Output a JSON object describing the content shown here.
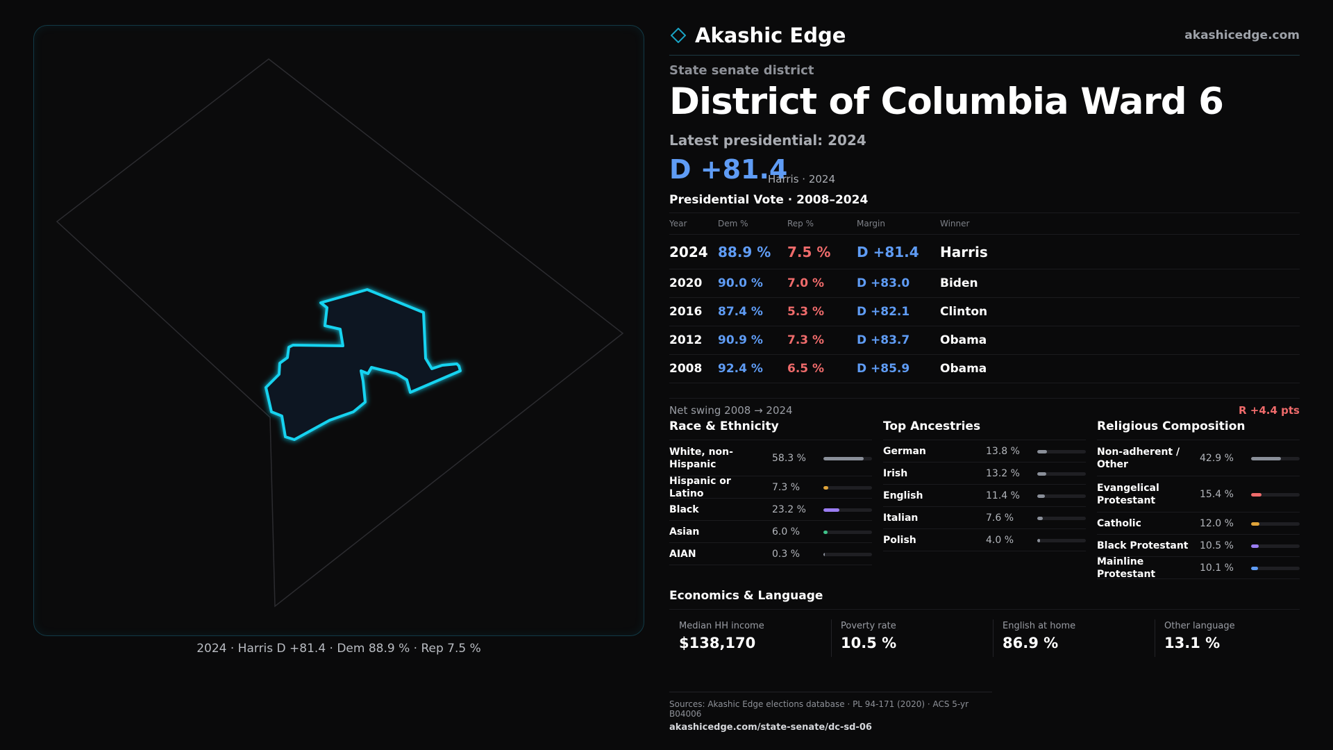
{
  "map": {
    "caption": "2024 · Harris D +81.4 · Dem 88.9 % · Rep 7.5 %"
  },
  "header": {
    "brand": "Akashic Edge",
    "domain": "akashicedge.com"
  },
  "district": {
    "kind": "State senate district",
    "name": "District of Columbia Ward 6",
    "latest_label": "Latest presidential: 2024",
    "margin": "D +81.4",
    "margin_sub": "Harris · 2024"
  },
  "presidential": {
    "title": "Presidential Vote · 2008–2024",
    "headers": {
      "year": "Year",
      "dem": "Dem %",
      "rep": "Rep %",
      "margin": "Margin",
      "winner": "Winner"
    },
    "rows": [
      {
        "year": "2024",
        "dem": "88.9 %",
        "rep": "7.5 %",
        "margin": "D +81.4",
        "winner": "Harris"
      },
      {
        "year": "2020",
        "dem": "90.0 %",
        "rep": "7.0 %",
        "margin": "D +83.0",
        "winner": "Biden"
      },
      {
        "year": "2016",
        "dem": "87.4 %",
        "rep": "5.3 %",
        "margin": "D +82.1",
        "winner": "Clinton"
      },
      {
        "year": "2012",
        "dem": "90.9 %",
        "rep": "7.3 %",
        "margin": "D +83.7",
        "winner": "Obama"
      },
      {
        "year": "2008",
        "dem": "92.4 %",
        "rep": "6.5 %",
        "margin": "D +85.9",
        "winner": "Obama"
      }
    ],
    "swing_label": "Net swing 2008 → 2024",
    "swing_value": "R +4.4 pts"
  },
  "race": {
    "title": "Race & Ethnicity",
    "items": [
      {
        "name": "White, non-Hispanic",
        "pct": "58.3 %",
        "value": 58.3,
        "color": "#8a8f99"
      },
      {
        "name": "Hispanic or Latino",
        "pct": "7.3 %",
        "value": 7.3,
        "color": "#e0a43a"
      },
      {
        "name": "Black",
        "pct": "23.2 %",
        "value": 23.2,
        "color": "#9b7df2"
      },
      {
        "name": "Asian",
        "pct": "6.0 %",
        "value": 6.0,
        "color": "#3fc48a"
      },
      {
        "name": "AIAN",
        "pct": "0.3 %",
        "value": 0.3,
        "color": "#8a8f99"
      }
    ]
  },
  "ancestry": {
    "title": "Top Ancestries",
    "items": [
      {
        "name": "German",
        "pct": "13.8 %",
        "value": 13.8,
        "color": "#8a8f99"
      },
      {
        "name": "Irish",
        "pct": "13.2 %",
        "value": 13.2,
        "color": "#8a8f99"
      },
      {
        "name": "English",
        "pct": "11.4 %",
        "value": 11.4,
        "color": "#8a8f99"
      },
      {
        "name": "Italian",
        "pct": "7.6 %",
        "value": 7.6,
        "color": "#8a8f99"
      },
      {
        "name": "Polish",
        "pct": "4.0 %",
        "value": 4.0,
        "color": "#8a8f99"
      }
    ]
  },
  "religion": {
    "title": "Religious Composition",
    "items": [
      {
        "name": "Non-adherent / Other",
        "pct": "42.9 %",
        "value": 42.9,
        "color": "#8a8f99"
      },
      {
        "name": "Evangelical Protestant",
        "pct": "15.4 %",
        "value": 15.4,
        "color": "#ef6b6b"
      },
      {
        "name": "Catholic",
        "pct": "12.0 %",
        "value": 12.0,
        "color": "#e0a43a"
      },
      {
        "name": "Black Protestant",
        "pct": "10.5 %",
        "value": 10.5,
        "color": "#9b7df2"
      },
      {
        "name": "Mainline Protestant",
        "pct": "10.1 %",
        "value": 10.1,
        "color": "#5f9cf5"
      }
    ]
  },
  "economics": {
    "title": "Economics & Language",
    "stats": [
      {
        "label": "Median HH income",
        "value": "$138,170"
      },
      {
        "label": "Poverty rate",
        "value": "10.5 %"
      },
      {
        "label": "English at home",
        "value": "86.9 %"
      },
      {
        "label": "Other language",
        "value": "13.1 %"
      }
    ]
  },
  "footer": {
    "sources": "Sources: Akashic Edge elections database · PL 94-171 (2020) · ACS 5-yr B04006",
    "url": "akashicedge.com/state-senate/dc-sd-06"
  }
}
